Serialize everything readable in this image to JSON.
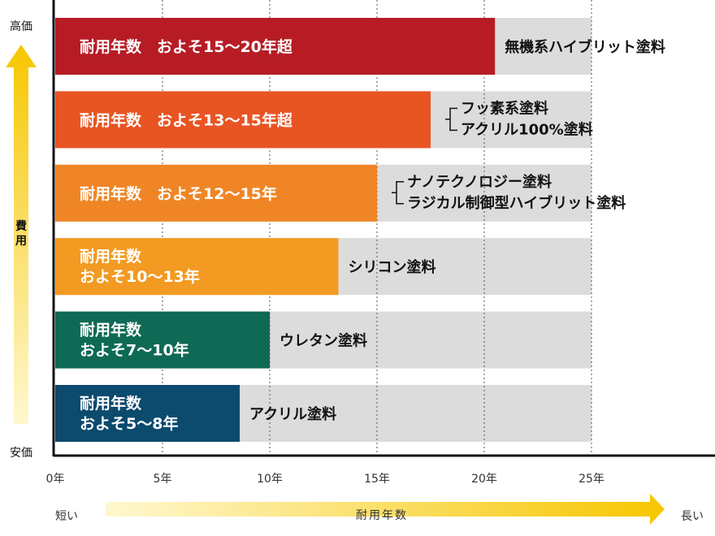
{
  "chart_data": {
    "type": "bar",
    "orientation": "horizontal",
    "x_unit": "年",
    "xlim": [
      0,
      30
    ],
    "gridlines": [
      5,
      10,
      15,
      20,
      25
    ],
    "track_max": 25,
    "x_ticks": [
      "0年",
      "5年",
      "10年",
      "15年",
      "20年",
      "25年"
    ],
    "bars": [
      {
        "value": 20.5,
        "color": "#b71c25",
        "label_lines": [
          "耐用年数　およそ15〜20年超"
        ],
        "paints": [
          "無機系ハイブリット塗料"
        ],
        "bracket": false
      },
      {
        "value": 17.5,
        "color": "#e95423",
        "label_lines": [
          "耐用年数　およそ13〜15年超"
        ],
        "paints": [
          "フッ素系塗料",
          "アクリル100%塗料"
        ],
        "bracket": true
      },
      {
        "value": 15,
        "color": "#f08526",
        "label_lines": [
          "耐用年数　およそ12〜15年"
        ],
        "paints": [
          "ナノテクノロジー塗料",
          "ラジカル制御型ハイブリット塗料"
        ],
        "bracket": true
      },
      {
        "value": 13.2,
        "color": "#f29a21",
        "label_lines": [
          "耐用年数",
          "およそ10〜13年"
        ],
        "paints": [
          "シリコン塗料"
        ],
        "bracket": false
      },
      {
        "value": 10,
        "color": "#0e6a55",
        "label_lines": [
          "耐用年数",
          "およそ7〜10年"
        ],
        "paints": [
          "ウレタン塗料"
        ],
        "bracket": false
      },
      {
        "value": 8.6,
        "color": "#0c4a6e",
        "label_lines": [
          "耐用年数",
          "およそ5〜8年"
        ],
        "paints": [
          "アクリル塗料"
        ],
        "bracket": false
      }
    ]
  },
  "cost_axis": {
    "top_label": "高価",
    "middle_label": "費用",
    "bottom_label": "安価"
  },
  "years_axis": {
    "left_label": "短い",
    "center_label": "耐用年数",
    "right_label": "長い"
  },
  "colors": {
    "track": "#dcdcdc",
    "arrow_light": "#fff8d0",
    "arrow_dark": "#f7c600"
  }
}
